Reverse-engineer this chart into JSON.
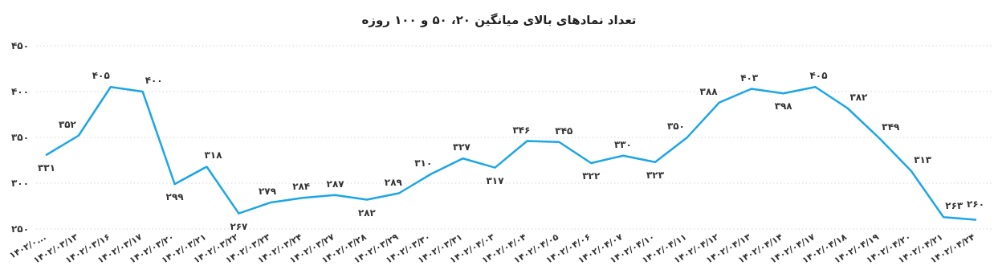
{
  "chart_data": {
    "type": "line",
    "title": "تعداد نمادهای بالای میانگین ۲۰، ۵۰ و ۱۰۰ روزه",
    "categories": [
      "۱۴۰۲/۰...",
      "۱۴۰۲/۰۳/۱۳",
      "۱۴۰۲/۰۳/۱۶",
      "۱۴۰۲/۰۳/۱۷",
      "۱۴۰۲/۰۳/۲۰",
      "۱۴۰۲/۰۳/۲۱",
      "۱۴۰۲/۰۳/۲۲",
      "۱۴۰۲/۰۳/۲۳",
      "۱۴۰۲/۰۳/۲۴",
      "۱۴۰۲/۰۳/۲۷",
      "۱۴۰۲/۰۳/۲۸",
      "۱۴۰۲/۰۳/۲۹",
      "۱۴۰۲/۰۳/۳۰",
      "۱۴۰۲/۰۳/۳۱",
      "۱۴۰۲/۰۴/۰۳",
      "۱۴۰۲/۰۴/۰۴",
      "۱۴۰۲/۰۴/۰۵",
      "۱۴۰۲/۰۴/۰۶",
      "۱۴۰۲/۰۴/۰۷",
      "۱۴۰۲/۰۴/۱۰",
      "۱۴۰۲/۰۴/۱۱",
      "۱۴۰۲/۰۴/۱۲",
      "۱۴۰۲/۰۴/۱۳",
      "۱۴۰۲/۰۴/۱۴",
      "۱۴۰۲/۰۴/۱۷",
      "۱۴۰۲/۰۴/۱۸",
      "۱۴۰۲/۰۴/۱۹",
      "۱۴۰۲/۰۴/۲۰",
      "۱۴۰۲/۰۴/۲۱",
      "۱۴۰۲/۰۴/۲۴"
    ],
    "values": [
      331,
      352,
      405,
      400,
      299,
      318,
      267,
      279,
      284,
      287,
      282,
      289,
      310,
      327,
      317,
      346,
      345,
      322,
      330,
      323,
      350,
      388,
      403,
      398,
      405,
      382,
      349,
      313,
      263,
      260
    ],
    "value_labels": [
      "۳۳۱",
      "۳۵۲",
      "۴۰۵",
      "۴۰۰",
      "۲۹۹",
      "۳۱۸",
      "۲۶۷",
      "۲۷۹",
      "۲۸۴",
      "۲۸۷",
      "۲۸۲",
      "۲۸۹",
      "۳۱۰",
      "۳۲۷",
      "۳۱۷",
      "۳۴۶",
      "۳۴۵",
      "۳۲۲",
      "۳۳۰",
      "۳۲۳",
      "۳۵۰",
      "۳۸۸",
      "۴۰۳",
      "۳۹۸",
      "۴۰۵",
      "۳۸۲",
      "۳۴۹",
      "۳۱۳",
      "۲۶۳",
      "۲۶۰"
    ],
    "color": "#1ca6e6",
    "ylim": [
      250,
      450
    ],
    "yticks": [
      {
        "value": 250,
        "label": "۲۵۰"
      },
      {
        "value": 300,
        "label": "۳۰۰"
      },
      {
        "value": 350,
        "label": "۳۵۰"
      },
      {
        "value": 400,
        "label": "۴۰۰"
      },
      {
        "value": 450,
        "label": "۴۵۰"
      }
    ],
    "grid": "y"
  }
}
